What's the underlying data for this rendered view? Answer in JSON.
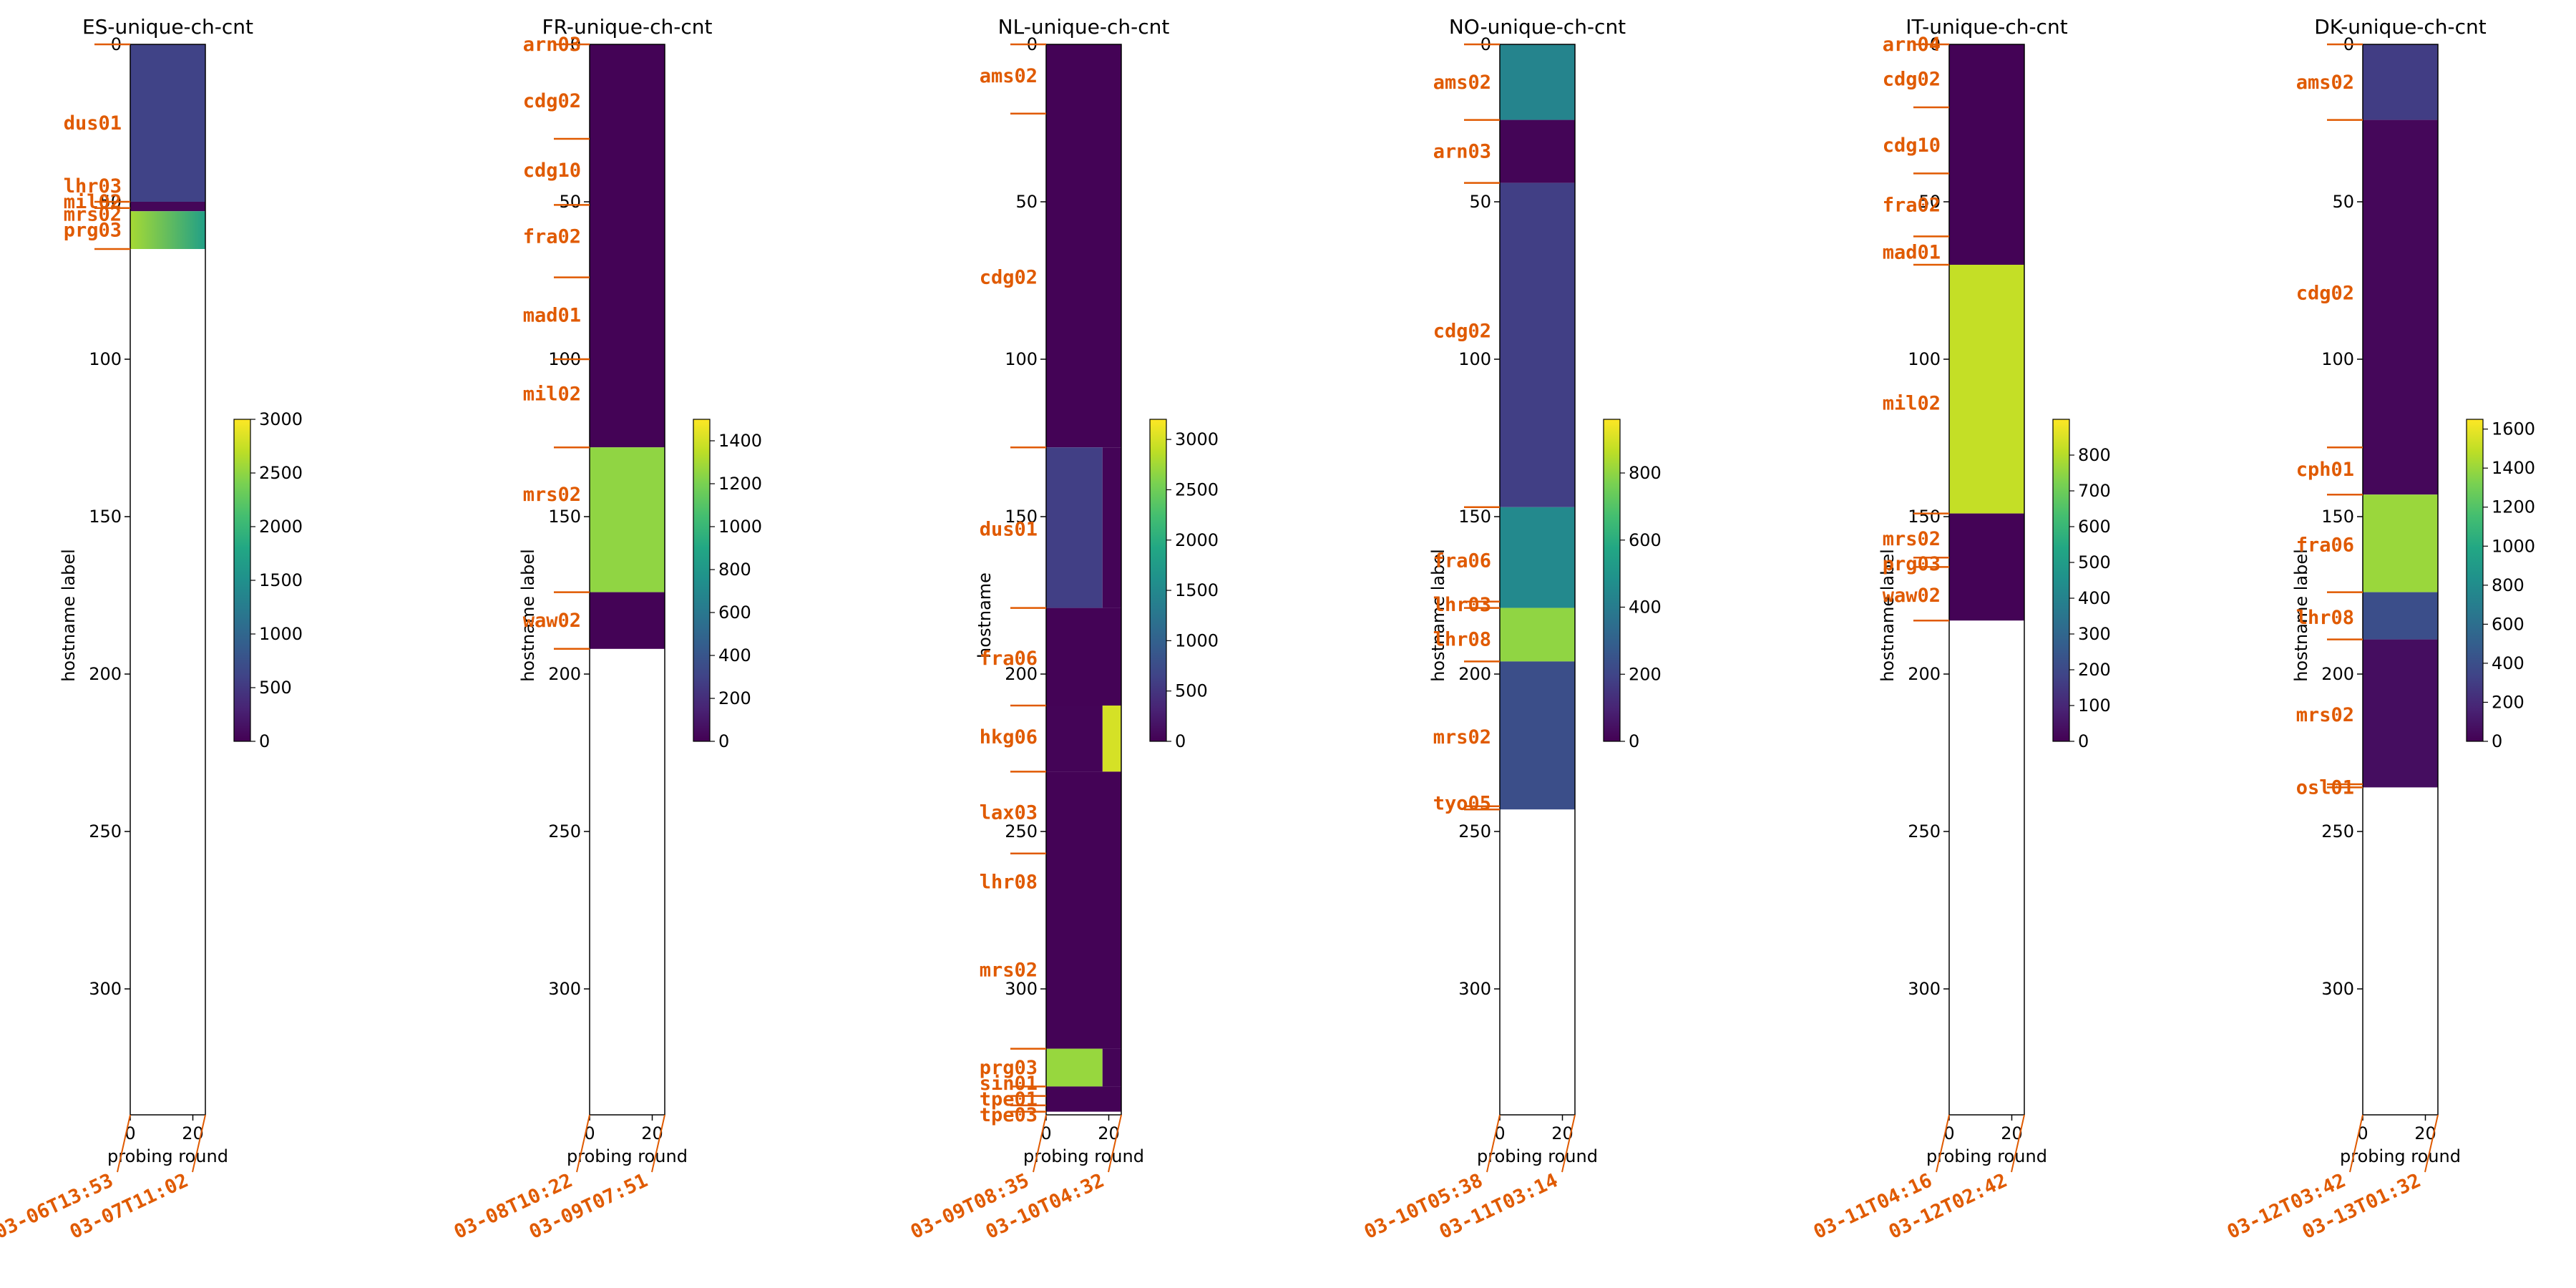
{
  "chart_data": [
    {
      "type": "heatmap",
      "title": "ES-unique-ch-cnt",
      "xlabel": "probing round",
      "ylabel": "hostname label",
      "xlim": [
        0,
        24
      ],
      "xticks": [
        0,
        20
      ],
      "ylim": [
        0,
        340
      ],
      "yticks": [
        0,
        50,
        100,
        150,
        200,
        250,
        300
      ],
      "filled_rows": 65,
      "colorbar": {
        "min": 0,
        "max": 3000,
        "ticks": [
          0,
          500,
          1000,
          1500,
          2000,
          2500,
          3000
        ]
      },
      "bands": [
        {
          "start": 0,
          "end": 50,
          "value": 600
        },
        {
          "start": 50,
          "end": 53,
          "value": 50
        },
        {
          "start": 53,
          "end": 65,
          "value": 2600,
          "gradient_to": 1700
        }
      ],
      "host_labels": [
        {
          "text": "dus01",
          "y": 25
        },
        {
          "text": "lhr03",
          "y": 45
        },
        {
          "text": "mil02",
          "y": 50
        },
        {
          "text": "mrs02",
          "y": 54
        },
        {
          "text": "prg03",
          "y": 59
        }
      ],
      "separators": [
        0,
        50,
        52,
        65
      ],
      "dates": [
        "03-06T13:53",
        "03-07T11:02"
      ]
    },
    {
      "type": "heatmap",
      "title": "FR-unique-ch-cnt",
      "xlabel": "probing round",
      "ylabel": "hostname label",
      "xlim": [
        0,
        24
      ],
      "xticks": [
        0,
        20
      ],
      "ylim": [
        0,
        340
      ],
      "yticks": [
        0,
        50,
        100,
        150,
        200,
        250,
        300
      ],
      "filled_rows": 192,
      "colorbar": {
        "min": 0,
        "max": 1500,
        "ticks": [
          0,
          200,
          400,
          600,
          800,
          1000,
          1200,
          1400
        ]
      },
      "bands": [
        {
          "start": 0,
          "end": 128,
          "value": 10
        },
        {
          "start": 128,
          "end": 174,
          "value": 1250
        },
        {
          "start": 174,
          "end": 192,
          "value": 10
        }
      ],
      "host_labels": [
        {
          "text": "arn03",
          "y": 0
        },
        {
          "text": "cdg02",
          "y": 18
        },
        {
          "text": "cdg10",
          "y": 40
        },
        {
          "text": "fra02",
          "y": 61
        },
        {
          "text": "mad01",
          "y": 86
        },
        {
          "text": "mil02",
          "y": 111
        },
        {
          "text": "mrs02",
          "y": 143
        },
        {
          "text": "waw02",
          "y": 183
        }
      ],
      "separators": [
        0,
        30,
        51,
        74,
        100,
        128,
        174,
        192
      ],
      "dates": [
        "03-08T10:22",
        "03-09T07:51"
      ]
    },
    {
      "type": "heatmap",
      "title": "NL-unique-ch-cnt",
      "xlabel": "probing round",
      "ylabel": "hostname",
      "xlim": [
        0,
        24
      ],
      "xticks": [
        0,
        20
      ],
      "ylim": [
        0,
        340
      ],
      "yticks": [
        0,
        50,
        100,
        150,
        200,
        250,
        300
      ],
      "filled_rows": 339,
      "colorbar": {
        "min": 0,
        "max": 3200,
        "ticks": [
          0,
          500,
          1000,
          1500,
          2000,
          2500,
          3000
        ]
      },
      "bands": [
        {
          "start": 0,
          "end": 128,
          "value": 20
        },
        {
          "start": 128,
          "end": 179,
          "value": 600,
          "x_end": 18
        },
        {
          "start": 179,
          "end": 210,
          "value": 20
        },
        {
          "start": 210,
          "end": 231,
          "value": 3000,
          "x_start": 18
        },
        {
          "start": 231,
          "end": 319,
          "value": 20
        },
        {
          "start": 319,
          "end": 331,
          "value": 2700,
          "x_end": 18
        },
        {
          "start": 331,
          "end": 339,
          "value": 20
        }
      ],
      "host_labels": [
        {
          "text": "ams02",
          "y": 10
        },
        {
          "text": "cdg02",
          "y": 74
        },
        {
          "text": "dus01",
          "y": 154
        },
        {
          "text": "fra06",
          "y": 195
        },
        {
          "text": "hkg06",
          "y": 220
        },
        {
          "text": "lax03",
          "y": 244
        },
        {
          "text": "lhr08",
          "y": 266
        },
        {
          "text": "mrs02",
          "y": 294
        },
        {
          "text": "prg03",
          "y": 325
        },
        {
          "text": "sin01",
          "y": 330
        },
        {
          "text": "tpe01",
          "y": 335
        },
        {
          "text": "tpe03",
          "y": 340
        }
      ],
      "separators": [
        0,
        22,
        128,
        179,
        210,
        231,
        257,
        319,
        331,
        334,
        337,
        339
      ],
      "dates": [
        "03-09T08:35",
        "03-10T04:32"
      ]
    },
    {
      "type": "heatmap",
      "title": "NO-unique-ch-cnt",
      "xlabel": "probing round",
      "ylabel": "hostname label",
      "xlim": [
        0,
        24
      ],
      "xticks": [
        0,
        20
      ],
      "ylim": [
        0,
        340
      ],
      "yticks": [
        0,
        50,
        100,
        150,
        200,
        250,
        300
      ],
      "filled_rows": 243,
      "colorbar": {
        "min": 0,
        "max": 960,
        "ticks": [
          0,
          200,
          400,
          600,
          800
        ]
      },
      "bands": [
        {
          "start": 0,
          "end": 24,
          "value": 430
        },
        {
          "start": 24,
          "end": 44,
          "value": 10
        },
        {
          "start": 44,
          "end": 147,
          "value": 180
        },
        {
          "start": 147,
          "end": 179,
          "value": 450
        },
        {
          "start": 179,
          "end": 196,
          "value": 800
        },
        {
          "start": 196,
          "end": 243,
          "value": 230
        }
      ],
      "host_labels": [
        {
          "text": "ams02",
          "y": 12
        },
        {
          "text": "arn03",
          "y": 34
        },
        {
          "text": "cdg02",
          "y": 91
        },
        {
          "text": "fra06",
          "y": 164
        },
        {
          "text": "lhr03",
          "y": 178
        },
        {
          "text": "lhr08",
          "y": 189
        },
        {
          "text": "mrs02",
          "y": 220
        },
        {
          "text": "tyo05",
          "y": 241
        }
      ],
      "separators": [
        0,
        24,
        44,
        147,
        177,
        179,
        196,
        242,
        243
      ],
      "dates": [
        "03-10T05:38",
        "03-11T03:14"
      ]
    },
    {
      "type": "heatmap",
      "title": "IT-unique-ch-cnt",
      "xlabel": "probing round",
      "ylabel": "hostname label",
      "xlim": [
        0,
        24
      ],
      "xticks": [
        0,
        20
      ],
      "ylim": [
        0,
        340
      ],
      "yticks": [
        0,
        50,
        100,
        150,
        200,
        250,
        300
      ],
      "filled_rows": 183,
      "colorbar": {
        "min": 0,
        "max": 900,
        "ticks": [
          0,
          100,
          200,
          300,
          400,
          500,
          600,
          700,
          800
        ]
      },
      "bands": [
        {
          "start": 0,
          "end": 70,
          "value": 5
        },
        {
          "start": 70,
          "end": 149,
          "value": 820
        },
        {
          "start": 149,
          "end": 183,
          "value": 5
        }
      ],
      "host_labels": [
        {
          "text": "arn04",
          "y": 0
        },
        {
          "text": "cdg02",
          "y": 11
        },
        {
          "text": "cdg10",
          "y": 32
        },
        {
          "text": "fra02",
          "y": 51
        },
        {
          "text": "mad01",
          "y": 66
        },
        {
          "text": "mil02",
          "y": 114
        },
        {
          "text": "mrs02",
          "y": 157
        },
        {
          "text": "prg03",
          "y": 165
        },
        {
          "text": "waw02",
          "y": 175
        }
      ],
      "separators": [
        0,
        20,
        41,
        61,
        70,
        149,
        163,
        166,
        183
      ],
      "dates": [
        "03-11T04:16",
        "03-12T02:42"
      ]
    },
    {
      "type": "heatmap",
      "title": "DK-unique-ch-cnt",
      "xlabel": "probing round",
      "ylabel": "hostname label",
      "xlim": [
        0,
        24
      ],
      "xticks": [
        0,
        20
      ],
      "ylim": [
        0,
        340
      ],
      "yticks": [
        0,
        50,
        100,
        150,
        200,
        250,
        300
      ],
      "filled_rows": 236,
      "colorbar": {
        "min": 0,
        "max": 1650,
        "ticks": [
          0,
          200,
          400,
          600,
          800,
          1000,
          1200,
          1400,
          1600
        ]
      },
      "bands": [
        {
          "start": 0,
          "end": 24,
          "value": 300
        },
        {
          "start": 24,
          "end": 143,
          "value": 30
        },
        {
          "start": 143,
          "end": 174,
          "value": 1400
        },
        {
          "start": 174,
          "end": 189,
          "value": 400
        },
        {
          "start": 189,
          "end": 236,
          "value": 60
        }
      ],
      "host_labels": [
        {
          "text": "ams02",
          "y": 12
        },
        {
          "text": "cdg02",
          "y": 79
        },
        {
          "text": "cph01",
          "y": 135
        },
        {
          "text": "fra06",
          "y": 159
        },
        {
          "text": "lhr08",
          "y": 182
        },
        {
          "text": "mrs02",
          "y": 213
        },
        {
          "text": "osl01",
          "y": 236
        }
      ],
      "separators": [
        0,
        24,
        128,
        143,
        174,
        189,
        235,
        236
      ],
      "dates": [
        "03-12T03:42",
        "03-13T01:32"
      ]
    }
  ]
}
